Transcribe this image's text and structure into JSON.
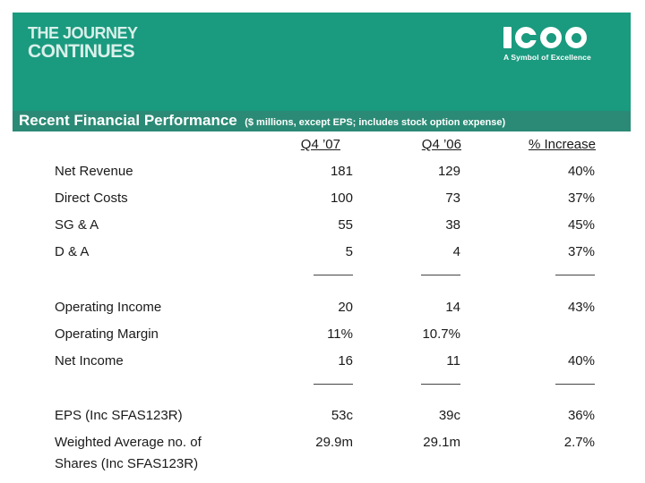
{
  "banner": {
    "tagline_line1": "THE JOURNEY",
    "tagline_line2": "CONTINUES",
    "logo_text": "ICON",
    "logo_tagline": "A Symbol of Excellence",
    "bg_color": "#1a9a7f"
  },
  "title": {
    "main": "Recent Financial Performance",
    "note": "($ millions, except EPS; includes stock option expense)"
  },
  "table": {
    "columns": [
      "Q4 ’07",
      "Q4 ’06",
      "% Increase"
    ],
    "rows": [
      {
        "label": "Net Revenue",
        "q407": "181",
        "q406": "129",
        "inc": "40%"
      },
      {
        "label": "Direct Costs",
        "q407": "100",
        "q406": "73",
        "inc": "37%"
      },
      {
        "label": "SG & A",
        "q407": "55",
        "q406": "38",
        "inc": "45%"
      },
      {
        "label": "D & A",
        "q407": "5",
        "q406": "4",
        "inc": "37%"
      },
      {
        "label": "Operating Income",
        "q407": "20",
        "q406": "14",
        "inc": "43%"
      },
      {
        "label": "Operating Margin",
        "q407": "11%",
        "q406": "10.7%",
        "inc": ""
      },
      {
        "label": "Net Income",
        "q407": "16",
        "q406": "11",
        "inc": "40%"
      },
      {
        "label": "EPS (Inc SFAS123R)",
        "q407": "53c",
        "q406": "39c",
        "inc": "36%"
      },
      {
        "label_line1": "Weighted Average no. of",
        "label_line2": "Shares (Inc SFAS123R)",
        "q407": "29.9m",
        "q406": "29.1m",
        "inc": "2.7%"
      }
    ]
  }
}
